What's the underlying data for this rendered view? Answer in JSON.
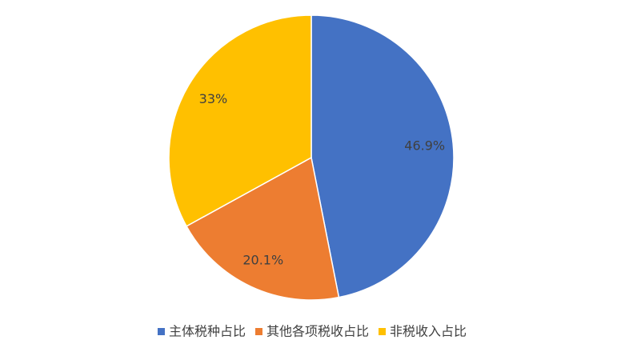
{
  "chart_data": {
    "type": "pie",
    "categories": [
      "主体税种占比",
      "其他各项税收占比",
      "非税收入占比"
    ],
    "values": [
      46.9,
      20.1,
      33
    ],
    "value_labels": [
      "46.9%",
      "20.1%",
      "33%"
    ],
    "colors": [
      "#4472c4",
      "#ed7d31",
      "#ffc000"
    ],
    "legend": "bottom"
  }
}
